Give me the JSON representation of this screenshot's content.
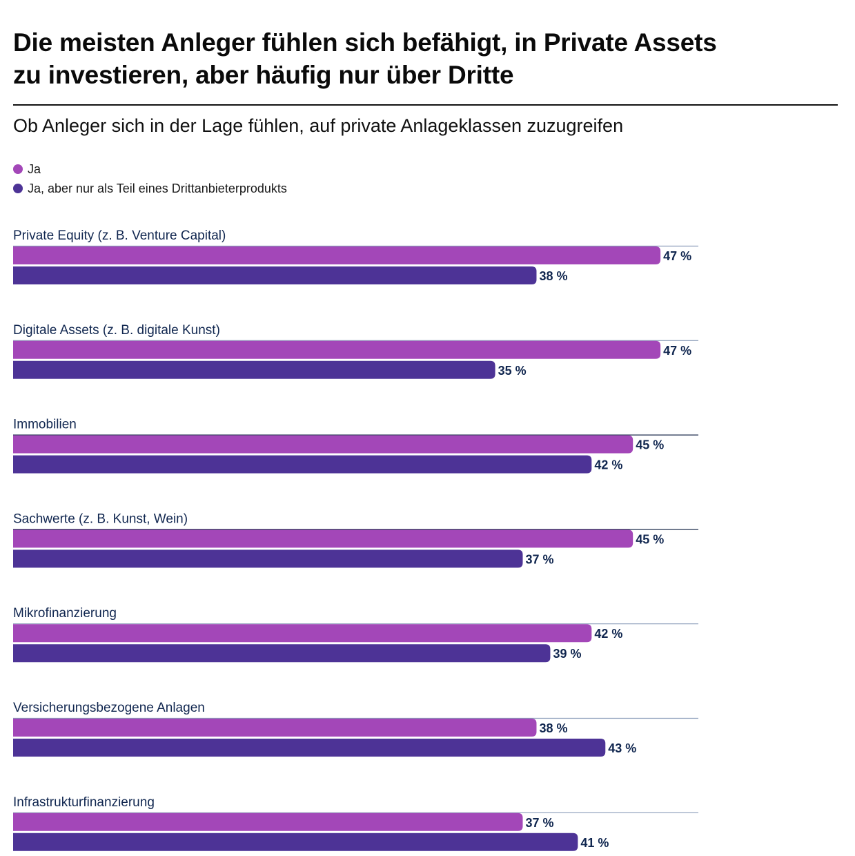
{
  "header": {
    "title_line1": "Die meisten Anleger fühlen sich befähigt, in Private Assets",
    "title_line2": "zu investieren, aber häufig nur über Dritte",
    "subtitle": "Ob Anleger sich in der Lage fühlen, auf private Anlageklassen zuzugreifen"
  },
  "legend": [
    {
      "label": "Ja",
      "color": "#a347b8"
    },
    {
      "label": "Ja, aber nur als Teil eines Drittanbieterprodukts",
      "color": "#4d3396"
    }
  ],
  "colors": {
    "label_text": "#10264f",
    "rule": "#8a9bb8"
  },
  "chart_data": {
    "type": "bar",
    "orientation": "horizontal",
    "title": "Die meisten Anleger fühlen sich befähigt, in Private Assets zu investieren, aber häufig nur über Dritte",
    "subtitle": "Ob Anleger sich in der Lage fühlen, auf private Anlageklassen zuzugreifen",
    "categories": [
      "Private Equity (z. B. Venture Capital)",
      "Digitale Assets (z. B. digitale Kunst)",
      "Immobilien",
      "Sachwerte (z. B. Kunst, Wein)",
      "Mikrofinanzierung",
      "Versicherungsbezogene Anlagen",
      "Infrastrukturfinanzierung"
    ],
    "series": [
      {
        "name": "Ja",
        "color": "#a347b8",
        "values": [
          47,
          47,
          45,
          45,
          42,
          38,
          37
        ]
      },
      {
        "name": "Ja, aber nur als Teil eines Drittanbieterprodukts",
        "color": "#4d3396",
        "values": [
          38,
          35,
          42,
          37,
          39,
          43,
          41
        ]
      }
    ],
    "value_suffix": " %",
    "xlim": [
      0,
      50
    ],
    "grid": false,
    "legend_position": "top-left",
    "xlabel": "",
    "ylabel": ""
  }
}
